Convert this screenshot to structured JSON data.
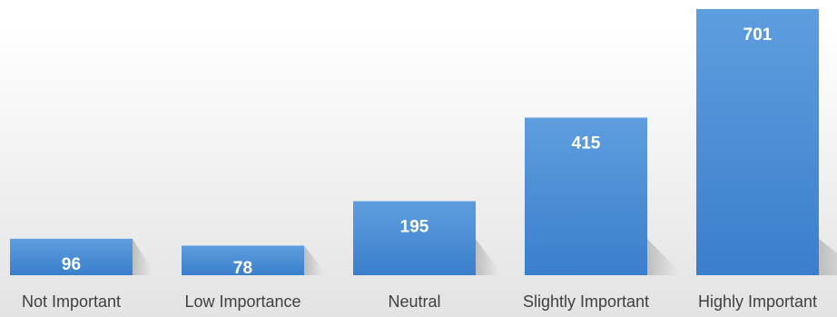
{
  "chart_data": {
    "type": "bar",
    "categories": [
      "Not Important",
      "Low Importance",
      "Neutral",
      "Slightly Important",
      "Highly Important"
    ],
    "values": [
      96,
      78,
      195,
      415,
      701
    ],
    "data_labels": [
      "96",
      "78",
      "195",
      "415",
      "701"
    ],
    "title": "",
    "xlabel": "",
    "ylabel": "",
    "ylim": [
      0,
      720
    ],
    "grid": false,
    "legend": "none",
    "bar_color": "#4a8fd8",
    "bar_color_light": "#5e9edf",
    "bar_color_dark": "#3a7fcc",
    "label_color": "#ffffff",
    "category_label_color": "#404040"
  }
}
